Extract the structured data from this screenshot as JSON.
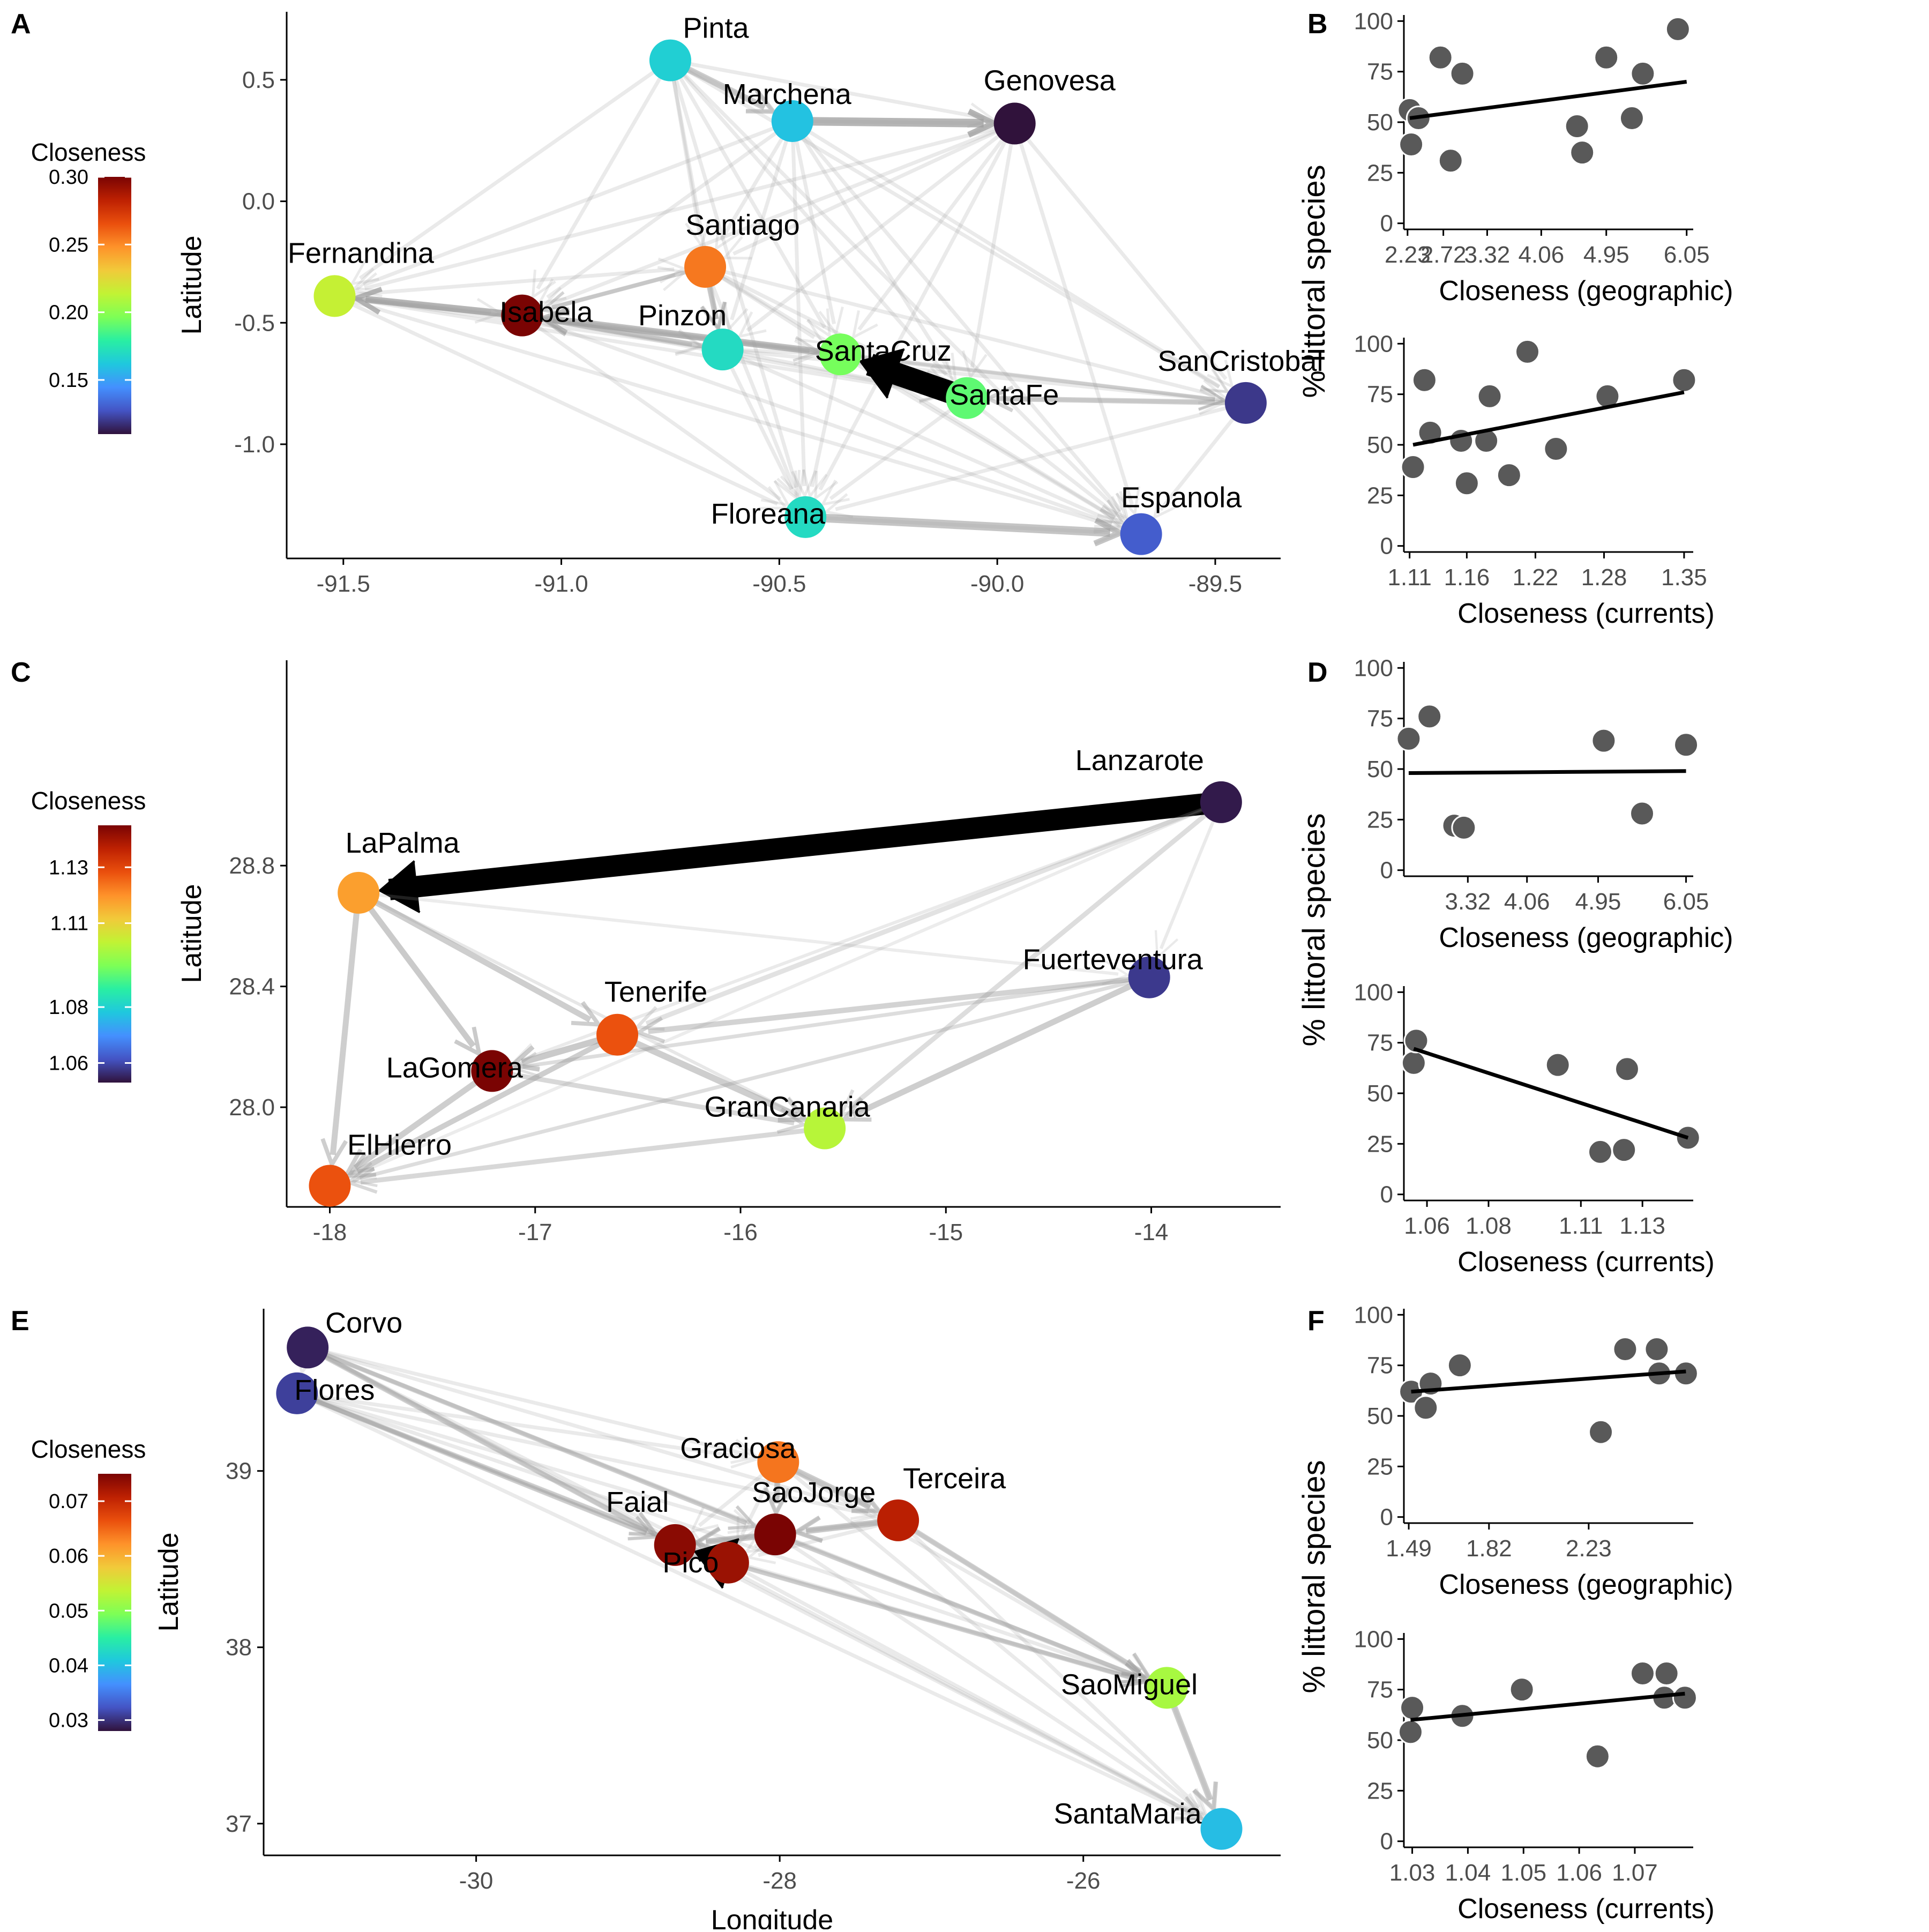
{
  "colors": {
    "point": "#595959",
    "edge": "#9e9e9e",
    "edge_strong": "#000000",
    "axis": "#000000",
    "tick_text": "#4d4d4d"
  },
  "colorscale": [
    "#30123b",
    "#4454c4",
    "#4490fe",
    "#1fc8de",
    "#29efa2",
    "#7dff56",
    "#c1f334",
    "#f1ca3a",
    "#fe922a",
    "#ea4f0d",
    "#be2102",
    "#7a0403"
  ],
  "chart_data": [
    {
      "panel": "A",
      "type": "network",
      "xlabel": "",
      "ylabel": "Latitude",
      "xlim": [
        -91.63,
        -89.35
      ],
      "ylim": [
        -1.47,
        0.78
      ],
      "xticks": [
        -91.5,
        -91.0,
        -90.5,
        -90.0,
        -89.5
      ],
      "xtick_labels": [
        "-91.5",
        "-91.0",
        "-90.5",
        "-90.0",
        "-89.5"
      ],
      "yticks": [
        0.5,
        0.0,
        -0.5,
        -1.0
      ],
      "ytick_labels": [
        "0.5",
        "0.0",
        "-0.5",
        "-1.0"
      ],
      "colorbar": {
        "title": "Closeness",
        "min": 0.11,
        "max": 0.3,
        "ticks": [
          0.3,
          0.25,
          0.2,
          0.15
        ],
        "tick_labels": [
          "0.30",
          "0.25",
          "0.20",
          "0.15"
        ]
      },
      "nodes": [
        {
          "name": "Pinta",
          "x": -90.75,
          "y": 0.58,
          "c": 0.165
        },
        {
          "name": "Marchena",
          "x": -90.47,
          "y": 0.33,
          "c": 0.16
        },
        {
          "name": "Genovesa",
          "x": -89.96,
          "y": 0.32,
          "c": 0.11
        },
        {
          "name": "Fernandina",
          "x": -91.52,
          "y": -0.39,
          "c": 0.215
        },
        {
          "name": "Isabela",
          "x": -91.09,
          "y": -0.47,
          "c": 0.3
        },
        {
          "name": "Santiago",
          "x": -90.67,
          "y": -0.27,
          "c": 0.255
        },
        {
          "name": "Pinzon",
          "x": -90.63,
          "y": -0.61,
          "c": 0.17
        },
        {
          "name": "SantaCruz",
          "x": -90.36,
          "y": -0.63,
          "c": 0.195
        },
        {
          "name": "SantaFe",
          "x": -90.07,
          "y": -0.81,
          "c": 0.19
        },
        {
          "name": "SanCristobal",
          "x": -89.43,
          "y": -0.83,
          "c": 0.12
        },
        {
          "name": "Floreana",
          "x": -90.44,
          "y": -1.3,
          "c": 0.17
        },
        {
          "name": "Espanola",
          "x": -89.67,
          "y": -1.37,
          "c": 0.13
        }
      ]
    },
    {
      "panel": "B",
      "type": "scatter",
      "xlabel": "Closeness (geographic)",
      "ylabel": "",
      "xlim": [
        2.18,
        6.14
      ],
      "ylim": [
        -3,
        103
      ],
      "xticks": [
        2.23,
        2.72,
        3.32,
        4.06,
        4.95,
        6.05
      ],
      "xtick_labels": [
        "2.23",
        "2.72",
        "3.32",
        "4.06",
        "4.95",
        "6.05"
      ],
      "yticks": [
        0,
        25,
        50,
        75,
        100
      ],
      "ytick_labels": [
        "0",
        "25",
        "50",
        "75",
        "100"
      ],
      "points": [
        [
          2.26,
          56
        ],
        [
          2.28,
          39
        ],
        [
          2.38,
          52
        ],
        [
          2.68,
          82
        ],
        [
          2.82,
          31
        ],
        [
          2.98,
          74
        ],
        [
          4.55,
          48
        ],
        [
          4.62,
          35
        ],
        [
          4.95,
          82
        ],
        [
          5.3,
          52
        ],
        [
          5.45,
          74
        ],
        [
          5.93,
          96
        ]
      ],
      "fit": [
        [
          2.26,
          52
        ],
        [
          6.05,
          70
        ]
      ]
    },
    {
      "panel": "B2",
      "type": "scatter",
      "xlabel": "Closeness (currents)",
      "ylabel": "% littoral species",
      "xlim": [
        1.105,
        1.358
      ],
      "ylim": [
        -3,
        103
      ],
      "xticks": [
        1.11,
        1.16,
        1.22,
        1.28,
        1.35
      ],
      "xtick_labels": [
        "1.11",
        "1.16",
        "1.22",
        "1.28",
        "1.35"
      ],
      "yticks": [
        0,
        25,
        50,
        75,
        100
      ],
      "ytick_labels": [
        "0",
        "25",
        "50",
        "75",
        "100"
      ],
      "points": [
        [
          1.113,
          39
        ],
        [
          1.123,
          82
        ],
        [
          1.128,
          56
        ],
        [
          1.155,
          52
        ],
        [
          1.16,
          31
        ],
        [
          1.177,
          52
        ],
        [
          1.18,
          74
        ],
        [
          1.197,
          35
        ],
        [
          1.213,
          96
        ],
        [
          1.238,
          48
        ],
        [
          1.283,
          74
        ],
        [
          1.35,
          82
        ]
      ],
      "fit": [
        [
          1.113,
          50
        ],
        [
          1.35,
          76
        ]
      ]
    },
    {
      "panel": "C",
      "type": "network",
      "xlabel": "",
      "ylabel": "Latitude",
      "xlim": [
        -18.21,
        -13.37
      ],
      "ylim": [
        27.67,
        29.48
      ],
      "xticks": [
        -18,
        -17,
        -16,
        -15,
        -14
      ],
      "xtick_labels": [
        "-18",
        "-17",
        "-16",
        "-15",
        "-14"
      ],
      "yticks": [
        28.8,
        28.4,
        28.0
      ],
      "ytick_labels": [
        "28.8",
        "28.4",
        "28.0"
      ],
      "colorbar": {
        "title": "Closeness",
        "min": 1.053,
        "max": 1.145,
        "ticks": [
          1.13,
          1.11,
          1.08,
          1.06
        ],
        "tick_labels": [
          "1.13",
          "1.11",
          "1.08",
          "1.06"
        ]
      },
      "nodes": [
        {
          "name": "Lanzarote",
          "x": -13.66,
          "y": 29.01,
          "c": 1.054
        },
        {
          "name": "LaPalma",
          "x": -17.86,
          "y": 28.71,
          "c": 1.118
        },
        {
          "name": "Fuerteventura",
          "x": -14.01,
          "y": 28.43,
          "c": 1.058
        },
        {
          "name": "Tenerife",
          "x": -16.6,
          "y": 28.24,
          "c": 1.128
        },
        {
          "name": "LaGomera",
          "x": -17.21,
          "y": 28.12,
          "c": 1.145
        },
        {
          "name": "GranCanaria",
          "x": -15.59,
          "y": 27.93,
          "c": 1.102
        },
        {
          "name": "ElHierro",
          "x": -18.0,
          "y": 27.74,
          "c": 1.128
        }
      ]
    },
    {
      "panel": "D",
      "type": "scatter",
      "xlabel": "Closeness (geographic)",
      "ylabel": "",
      "xlim": [
        2.52,
        6.14
      ],
      "ylim": [
        -3,
        103
      ],
      "xticks": [
        3.32,
        4.06,
        4.95,
        6.05
      ],
      "xtick_labels": [
        "3.32",
        "4.06",
        "4.95",
        "6.05"
      ],
      "yticks": [
        0,
        25,
        50,
        75,
        100
      ],
      "ytick_labels": [
        "0",
        "25",
        "50",
        "75",
        "100"
      ],
      "points": [
        [
          2.58,
          65
        ],
        [
          2.84,
          76
        ],
        [
          3.15,
          22
        ],
        [
          3.27,
          21
        ],
        [
          5.02,
          64
        ],
        [
          5.5,
          28
        ],
        [
          6.05,
          62
        ]
      ],
      "fit": [
        [
          2.58,
          48
        ],
        [
          6.05,
          49
        ]
      ]
    },
    {
      "panel": "D2",
      "type": "scatter",
      "xlabel": "Closeness (currents)",
      "ylabel": "% littoral species",
      "xlim": [
        1.0525,
        1.1465
      ],
      "ylim": [
        -3,
        103
      ],
      "xticks": [
        1.06,
        1.08,
        1.11,
        1.13
      ],
      "xtick_labels": [
        "1.06",
        "1.08",
        "1.11",
        "1.13"
      ],
      "yticks": [
        0,
        25,
        50,
        75,
        100
      ],
      "ytick_labels": [
        "0",
        "25",
        "50",
        "75",
        "100"
      ],
      "points": [
        [
          1.0557,
          65
        ],
        [
          1.0565,
          76
        ],
        [
          1.1025,
          64
        ],
        [
          1.1163,
          21
        ],
        [
          1.124,
          22
        ],
        [
          1.125,
          62
        ],
        [
          1.1448,
          28
        ]
      ],
      "fit": [
        [
          1.0557,
          72
        ],
        [
          1.1448,
          28
        ]
      ]
    },
    {
      "panel": "E",
      "type": "network",
      "xlabel": "Longitude",
      "ylabel": "Latitude",
      "xlim": [
        -31.4,
        -24.7
      ],
      "ylim": [
        36.82,
        39.92
      ],
      "xticks": [
        -30,
        -28,
        -26
      ],
      "xtick_labels": [
        "-30",
        "-28",
        "-26"
      ],
      "yticks": [
        39,
        38,
        37
      ],
      "ytick_labels": [
        "39",
        "38",
        "37"
      ],
      "colorbar": {
        "title": "Closeness",
        "min": 0.028,
        "max": 0.075,
        "ticks": [
          0.07,
          0.06,
          0.05,
          0.04,
          0.03
        ],
        "tick_labels": [
          "0.07",
          "0.06",
          "0.05",
          "0.04",
          "0.03"
        ]
      },
      "nodes": [
        {
          "name": "Corvo",
          "x": -31.11,
          "y": 39.7,
          "c": 0.029
        },
        {
          "name": "Flores",
          "x": -31.18,
          "y": 39.44,
          "c": 0.031
        },
        {
          "name": "Graciosa",
          "x": -28.01,
          "y": 39.05,
          "c": 0.064
        },
        {
          "name": "Terceira",
          "x": -27.22,
          "y": 38.72,
          "c": 0.071
        },
        {
          "name": "SaoJorge",
          "x": -28.03,
          "y": 38.64,
          "c": 0.075
        },
        {
          "name": "Faial",
          "x": -28.69,
          "y": 38.58,
          "c": 0.074
        },
        {
          "name": "Pico",
          "x": -28.34,
          "y": 38.48,
          "c": 0.073
        },
        {
          "name": "SaoMiguel",
          "x": -25.45,
          "y": 37.77,
          "c": 0.052
        },
        {
          "name": "SantaMaria",
          "x": -25.09,
          "y": 36.97,
          "c": 0.04
        }
      ]
    },
    {
      "panel": "F",
      "type": "scatter",
      "xlabel": "Closeness (geographic)",
      "ylabel": "",
      "xlim": [
        1.47,
        2.66
      ],
      "ylim": [
        -3,
        103
      ],
      "xticks": [
        1.49,
        1.82,
        2.23
      ],
      "xtick_labels": [
        "1.49",
        "1.82",
        "2.23"
      ],
      "yticks": [
        0,
        25,
        50,
        75,
        100
      ],
      "ytick_labels": [
        "0",
        "25",
        "50",
        "75",
        "100"
      ],
      "points": [
        [
          1.5,
          62
        ],
        [
          1.56,
          54
        ],
        [
          1.58,
          66
        ],
        [
          1.7,
          75
        ],
        [
          2.28,
          42
        ],
        [
          2.38,
          83
        ],
        [
          2.51,
          83
        ],
        [
          2.52,
          71
        ],
        [
          2.63,
          71
        ]
      ],
      "fit": [
        [
          1.5,
          62
        ],
        [
          2.63,
          72
        ]
      ]
    },
    {
      "panel": "F2",
      "type": "scatter",
      "xlabel": "Closeness (currents)",
      "ylabel": "% littoral species",
      "xlim": [
        1.0285,
        1.0805
      ],
      "ylim": [
        -3,
        103
      ],
      "xticks": [
        1.03,
        1.04,
        1.05,
        1.06,
        1.07
      ],
      "xtick_labels": [
        "1.03",
        "1.04",
        "1.05",
        "1.06",
        "1.07"
      ],
      "yticks": [
        0,
        25,
        50,
        75,
        100
      ],
      "ytick_labels": [
        "0",
        "25",
        "50",
        "75",
        "100"
      ],
      "points": [
        [
          1.0297,
          54
        ],
        [
          1.03,
          66
        ],
        [
          1.039,
          62
        ],
        [
          1.0497,
          75
        ],
        [
          1.0633,
          42
        ],
        [
          1.0714,
          83
        ],
        [
          1.0757,
          83
        ],
        [
          1.0753,
          71
        ],
        [
          1.079,
          71
        ]
      ],
      "fit": [
        [
          1.0297,
          60
        ],
        [
          1.079,
          73
        ]
      ]
    }
  ],
  "panel_labels": [
    "A",
    "B",
    "C",
    "D",
    "E",
    "F"
  ]
}
